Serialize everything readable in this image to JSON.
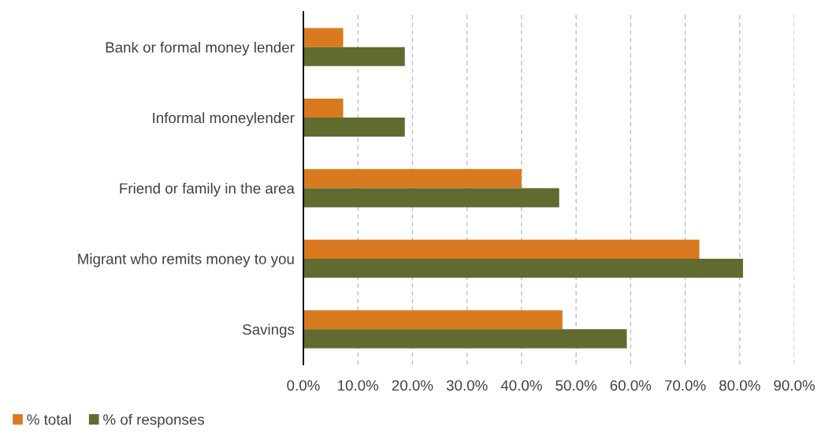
{
  "chart_data": {
    "type": "bar",
    "orientation": "horizontal",
    "categories": [
      "Bank or formal money lender",
      "Informal moneylender",
      "Friend or family in the area",
      "Migrant who remits money to you",
      "Savings"
    ],
    "series": [
      {
        "name": "% total",
        "color": "#d97a20",
        "values": [
          0.073,
          0.073,
          0.4,
          0.726,
          0.475
        ]
      },
      {
        "name": "% of responses",
        "color": "#5f6b2f",
        "values": [
          0.186,
          0.186,
          0.469,
          0.806,
          0.593
        ]
      }
    ],
    "xlim": [
      0,
      0.9
    ],
    "xticks": [
      {
        "value": 0,
        "label": "0.0%"
      },
      {
        "value": 0.1,
        "label": "10.0%"
      },
      {
        "value": 0.2,
        "label": "20.0%"
      },
      {
        "value": 0.3,
        "label": "30.0%"
      },
      {
        "value": 0.4,
        "label": "40.0%"
      },
      {
        "value": 0.5,
        "label": "50.0%"
      },
      {
        "value": 0.6,
        "label": "60.0%"
      },
      {
        "value": 0.7,
        "label": "70.0%"
      },
      {
        "value": 0.8,
        "label": "80.0%"
      },
      {
        "value": 0.9,
        "label": "90.0%"
      }
    ],
    "grid": "x",
    "legend": "bottom left"
  }
}
